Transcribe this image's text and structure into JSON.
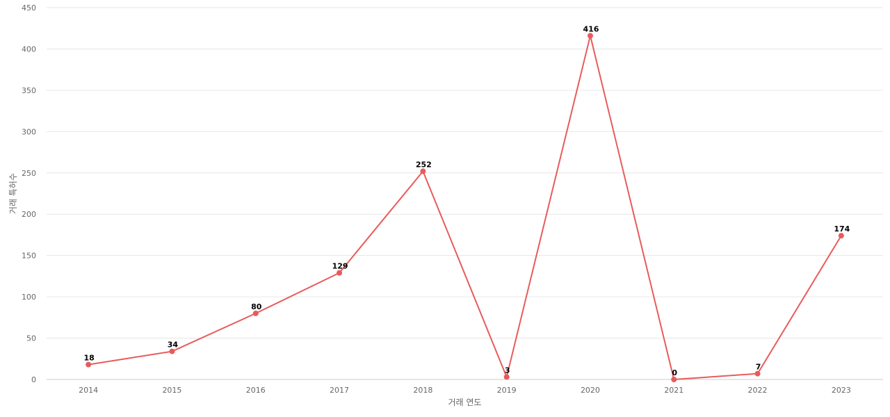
{
  "chart_data": {
    "type": "line",
    "title": "",
    "xlabel": "거래 연도",
    "ylabel": "거래 특허수",
    "categories": [
      "2014",
      "2015",
      "2016",
      "2017",
      "2018",
      "2019",
      "2020",
      "2021",
      "2022",
      "2023"
    ],
    "series": [
      {
        "values": [
          18,
          34,
          80,
          129,
          252,
          3,
          416,
          0,
          7,
          174
        ],
        "color": "#e85b5b"
      }
    ],
    "ylim": [
      0,
      450
    ],
    "yticks": [
      0,
      50,
      100,
      150,
      200,
      250,
      300,
      350,
      400,
      450
    ],
    "grid": true,
    "show_data_labels": true,
    "legend": "none"
  }
}
